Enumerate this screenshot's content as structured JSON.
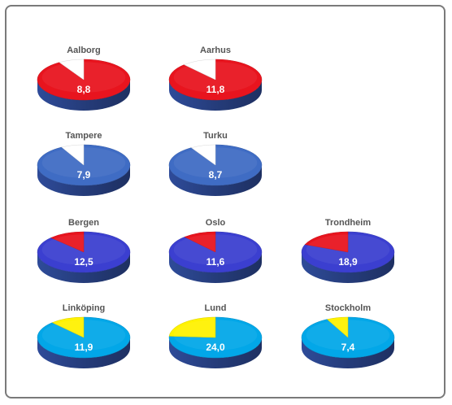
{
  "chart_data": {
    "type": "pie",
    "style": "3d-pie-grid",
    "colors": {
      "denmark": "#e8141e",
      "finland": "#3f6cc4",
      "norway": "#3b3fd0",
      "sweden": "#02a7e8",
      "denmark_slice": "#ffffff",
      "finland_slice": "#ffffff",
      "norway_slice": "#e8141e",
      "sweden_slice": "#fff200",
      "base_side": "#253c7a"
    },
    "charts": [
      {
        "name": "Aalborg",
        "label": "8,8",
        "value": 8.8,
        "group": "denmark"
      },
      {
        "name": "Aarhus",
        "label": "11,8",
        "value": 11.8,
        "group": "denmark"
      },
      {
        "name": "Tampere",
        "label": "7,9",
        "value": 7.9,
        "group": "finland"
      },
      {
        "name": "Turku",
        "label": "8,7",
        "value": 8.7,
        "group": "finland"
      },
      {
        "name": "Bergen",
        "label": "12,5",
        "value": 12.5,
        "group": "norway"
      },
      {
        "name": "Oslo",
        "label": "11,6",
        "value": 11.6,
        "group": "norway"
      },
      {
        "name": "Trondheim",
        "label": "18,9",
        "value": 18.9,
        "group": "norway"
      },
      {
        "name": "Linköping",
        "label": "11,9",
        "value": 11.9,
        "group": "sweden"
      },
      {
        "name": "Lund",
        "label": "24,0",
        "value": 24.0,
        "group": "sweden"
      },
      {
        "name": "Stockholm",
        "label": "7,4",
        "value": 7.4,
        "group": "sweden"
      }
    ]
  }
}
